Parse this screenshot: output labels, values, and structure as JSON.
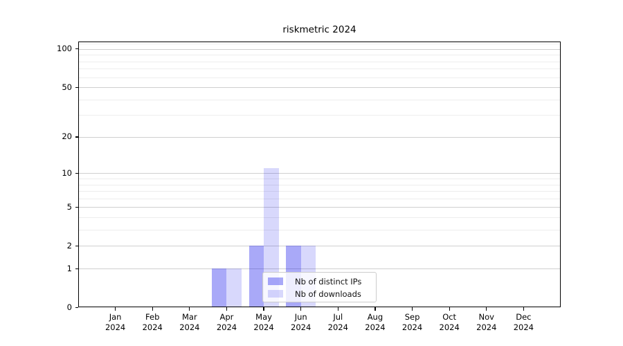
{
  "figure": {
    "title": "riskmetric 2024"
  },
  "chart_data": {
    "type": "bar",
    "title": "riskmetric 2024",
    "categories": [
      "Jan",
      "Feb",
      "Mar",
      "Apr",
      "May",
      "Jun",
      "Jul",
      "Aug",
      "Sep",
      "Oct",
      "Nov",
      "Dec"
    ],
    "year_label": "2024",
    "x_tick_labels": [
      "Jan 2024",
      "Feb 2024",
      "Mar 2024",
      "Apr 2024",
      "May 2024",
      "Jun 2024",
      "Jul 2024",
      "Aug 2024",
      "Sep 2024",
      "Oct 2024",
      "Nov 2024",
      "Dec 2024"
    ],
    "series": [
      {
        "name": "Nb of distinct IPs",
        "color": "rgba(8, 8, 236, 0.35)",
        "values": [
          0,
          0,
          0,
          1,
          2,
          2,
          0,
          0,
          0,
          0,
          0,
          0
        ]
      },
      {
        "name": "Nb of downloads",
        "color": "rgba(8, 8, 236, 0.155)",
        "values": [
          0,
          0,
          0,
          1,
          11,
          2,
          0,
          0,
          0,
          0,
          0,
          0
        ]
      }
    ],
    "y_axis": {
      "scale": "log1p",
      "major_ticks": [
        0,
        1,
        2,
        5,
        10,
        20,
        50,
        100
      ],
      "minor_ticks": [
        3,
        4,
        6,
        7,
        8,
        9,
        30,
        40,
        60,
        70,
        80,
        90,
        110
      ],
      "range": [
        0,
        115
      ]
    },
    "grid": true,
    "legend": {
      "position": "lower center",
      "items": [
        "Nb of distinct IPs",
        "Nb of downloads"
      ]
    }
  },
  "colors": {
    "background": "#ffffff",
    "axis": "#000000",
    "text": "#000000",
    "major_grid": "#cfcfcf",
    "minor_grid": "#ededed",
    "legend_border": "#cccccc",
    "legend_background": "rgba(255,255,255,0.8)"
  }
}
